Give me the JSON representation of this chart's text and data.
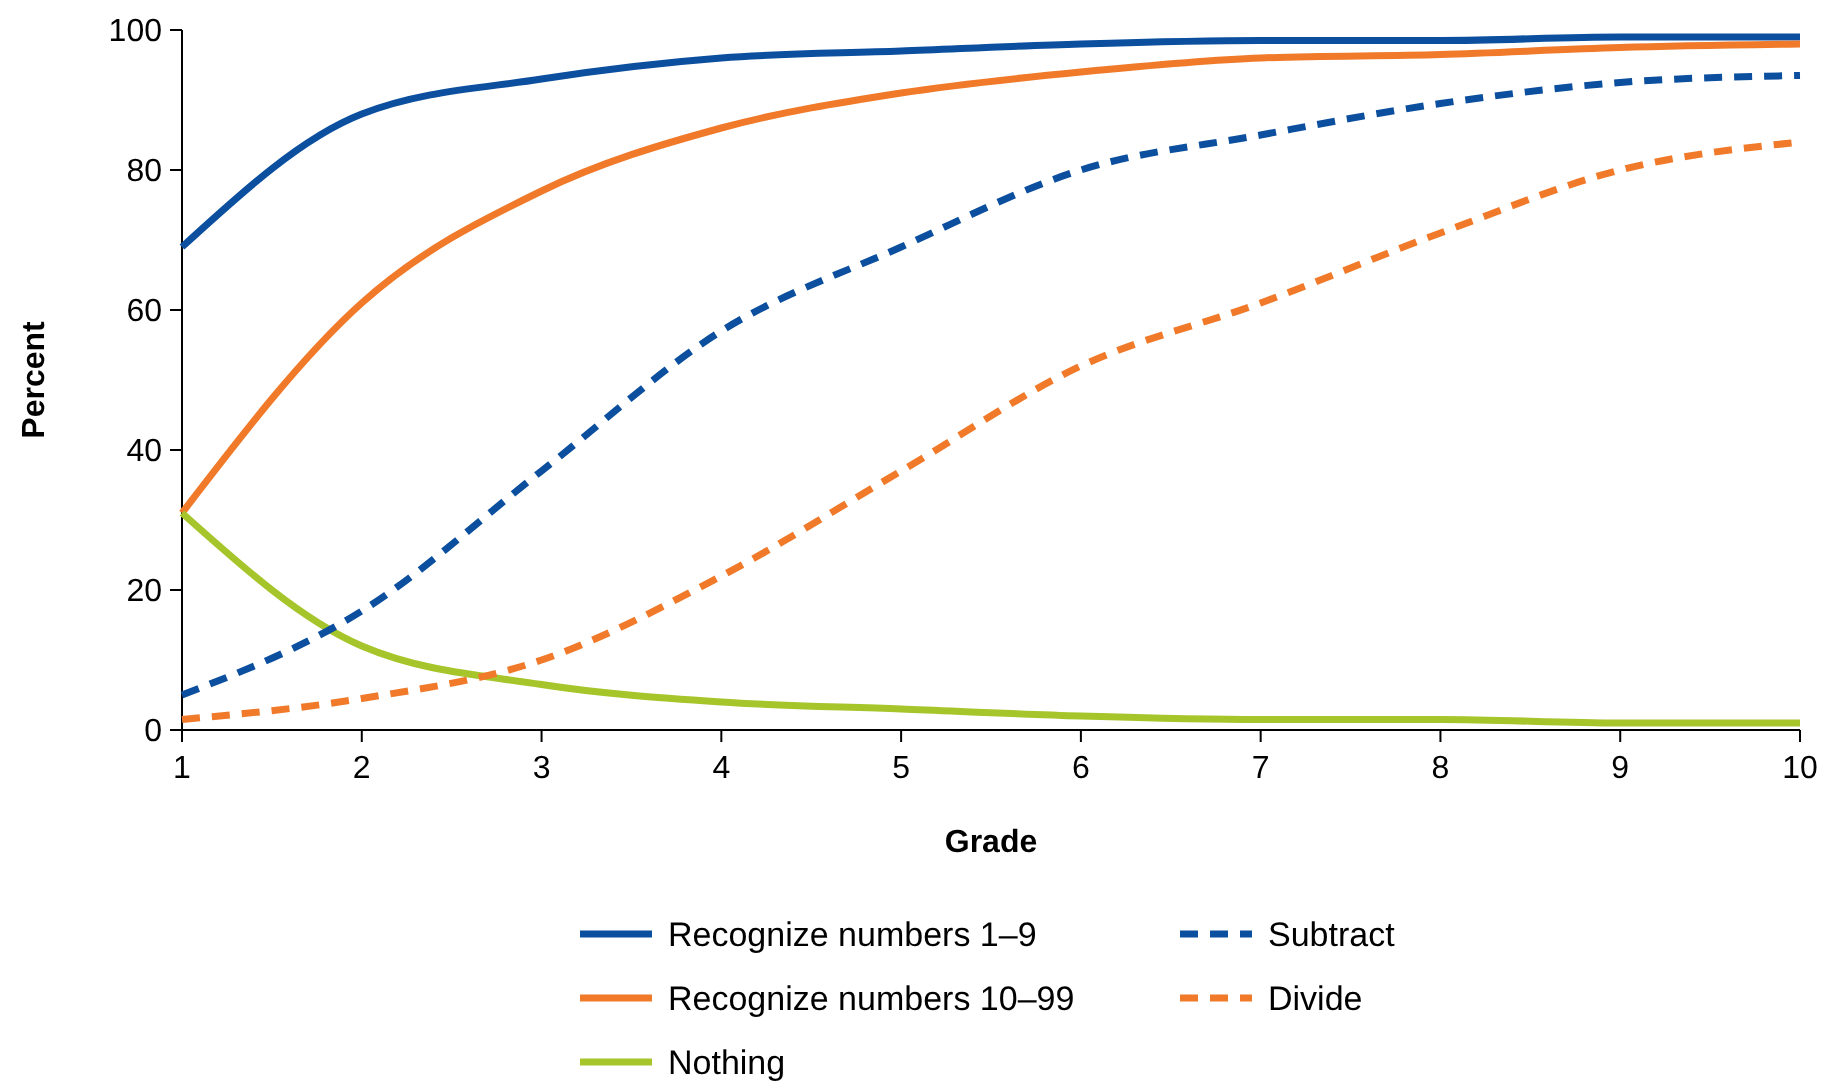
{
  "chart_data": {
    "type": "line",
    "xlabel": "Grade",
    "ylabel": "Percent",
    "x": [
      1,
      2,
      3,
      4,
      5,
      6,
      7,
      8,
      9,
      10
    ],
    "xlim": [
      1,
      10
    ],
    "xticks": [
      1,
      2,
      3,
      4,
      5,
      6,
      7,
      8,
      9,
      10
    ],
    "ylim": [
      0,
      100
    ],
    "yticks": [
      0,
      20,
      40,
      60,
      80,
      100
    ],
    "grid": false,
    "legend": "bottom",
    "marker": "none",
    "series": [
      {
        "name": "Recognize numbers 1–9",
        "color": "#0b4f9e",
        "line_style": "solid",
        "values": [
          69,
          88,
          93,
          96,
          97,
          98,
          98.5,
          98.5,
          99,
          99
        ]
      },
      {
        "name": "Recognize numbers 10–99",
        "color": "#f07a2a",
        "line_style": "solid",
        "values": [
          31,
          61,
          77,
          86,
          91,
          94,
          96,
          96.5,
          97.5,
          98
        ]
      },
      {
        "name": "Nothing",
        "color": "#a6c52b",
        "line_style": "solid",
        "values": [
          31,
          12,
          6.5,
          4,
          3,
          2,
          1.5,
          1.5,
          1,
          1
        ]
      },
      {
        "name": "Subtract",
        "color": "#0b4f9e",
        "line_style": "dashed",
        "values": [
          5,
          17,
          37,
          57,
          69,
          80,
          85,
          89.5,
          92.5,
          93.5
        ]
      },
      {
        "name": "Divide",
        "color": "#f07a2a",
        "line_style": "dashed",
        "values": [
          1.5,
          4.5,
          10,
          22,
          37,
          52,
          61,
          71,
          80,
          84
        ]
      }
    ]
  }
}
